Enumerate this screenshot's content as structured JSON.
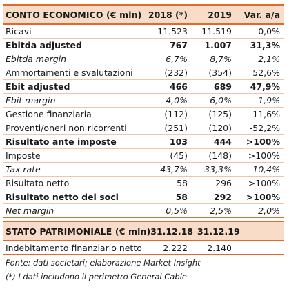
{
  "income_statement": {
    "headers": [
      "CONTO ECONOMICO (€ mln)",
      "2018 (*)",
      "2019",
      "Var. a/a"
    ],
    "rows": [
      {
        "label": "Ricavi",
        "v2018": "11.523",
        "v2019": "11.519",
        "var": "0,0%",
        "style": "normal"
      },
      {
        "label": "Ebitda adjusted",
        "v2018": "767",
        "v2019": "1.007",
        "var": "31,3%",
        "style": "bold"
      },
      {
        "label": "Ebitda margin",
        "v2018": "6,7%",
        "v2019": "8,7%",
        "var": "2,1%",
        "style": "italic"
      },
      {
        "label": "Ammortamenti e svalutazioni",
        "v2018": "(232)",
        "v2019": "(354)",
        "var": "52,6%",
        "style": "normal"
      },
      {
        "label": "Ebit adjusted",
        "v2018": "466",
        "v2019": "689",
        "var": "47,9%",
        "style": "bold"
      },
      {
        "label": "Ebit margin",
        "v2018": "4,0%",
        "v2019": "6,0%",
        "var": "1,9%",
        "style": "italic"
      },
      {
        "label": "Gestione finanziaria",
        "v2018": "(112)",
        "v2019": "(125)",
        "var": "11,6%",
        "style": "normal"
      },
      {
        "label": "Proventi/oneri non ricorrenti",
        "v2018": "(251)",
        "v2019": "(120)",
        "var": "-52,2%",
        "style": "normal"
      },
      {
        "label": "Risultato ante imposte",
        "v2018": "103",
        "v2019": "444",
        "var": ">100%",
        "style": "bold"
      },
      {
        "label": "Imposte",
        "v2018": "(45)",
        "v2019": "(148)",
        "var": ">100%",
        "style": "normal"
      },
      {
        "label": "Tax rate",
        "v2018": "43,7%",
        "v2019": "33,3%",
        "var": "-10,4%",
        "style": "italic"
      },
      {
        "label": "Risultato netto",
        "v2018": "58",
        "v2019": "296",
        "var": ">100%",
        "style": "normal"
      },
      {
        "label": "Risultato netto dei soci",
        "v2018": "58",
        "v2019": "292",
        "var": ">100%",
        "style": "bold"
      },
      {
        "label": "Net margin",
        "v2018": "0,5%",
        "v2019": "2,5%",
        "var": "2,0%",
        "style": "italic"
      }
    ]
  },
  "balance_sheet": {
    "headers": [
      "STATO PATRIMONIALE (€ mln)",
      "31.12.18",
      "31.12.19"
    ],
    "rows": [
      {
        "label": "Indebitamento finanziario netto",
        "v2018": "2.222",
        "v2019": "2.140"
      }
    ]
  },
  "notes": {
    "source": "Fonte: dati societari; elaborazione Market Insight",
    "footnote": "(*) I dati includono il perimetro General Cable"
  },
  "colors": {
    "header_fill": "#f8dcc7",
    "accent_line": "#e06a2c",
    "row_line": "#f1c6a8"
  }
}
